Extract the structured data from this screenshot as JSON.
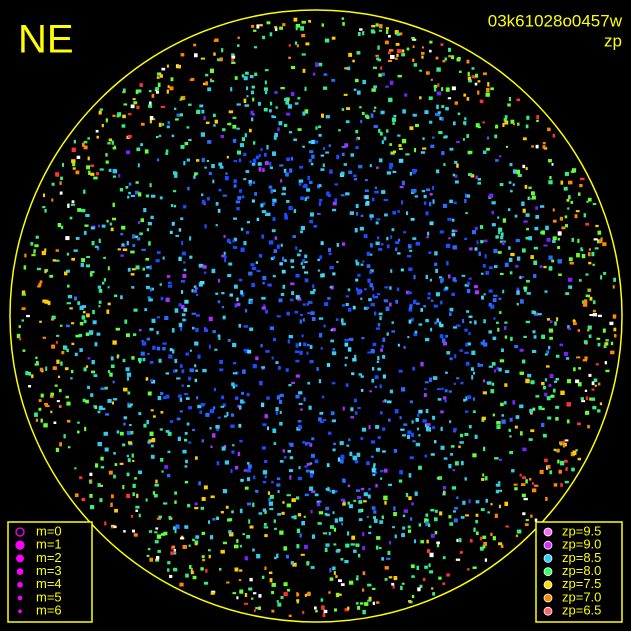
{
  "header": {
    "label": "NE",
    "id": "03k61028o0457w",
    "mode": "zp"
  },
  "legend_m": [
    "m=0",
    "m=1",
    "m=2",
    "m=3",
    "m=4",
    "m=5",
    "m=6"
  ],
  "legend_zp": [
    {
      "label": "zp=9.5",
      "color": "#ff66ff"
    },
    {
      "label": "zp=9.0",
      "color": "#cc33ff"
    },
    {
      "label": "zp=8.5",
      "color": "#33ccff"
    },
    {
      "label": "zp=8.0",
      "color": "#33ff66"
    },
    {
      "label": "zp=7.5",
      "color": "#ffdd00"
    },
    {
      "label": "zp=7.0",
      "color": "#ff8800"
    },
    {
      "label": "zp=6.5",
      "color": "#ff6666"
    }
  ]
}
